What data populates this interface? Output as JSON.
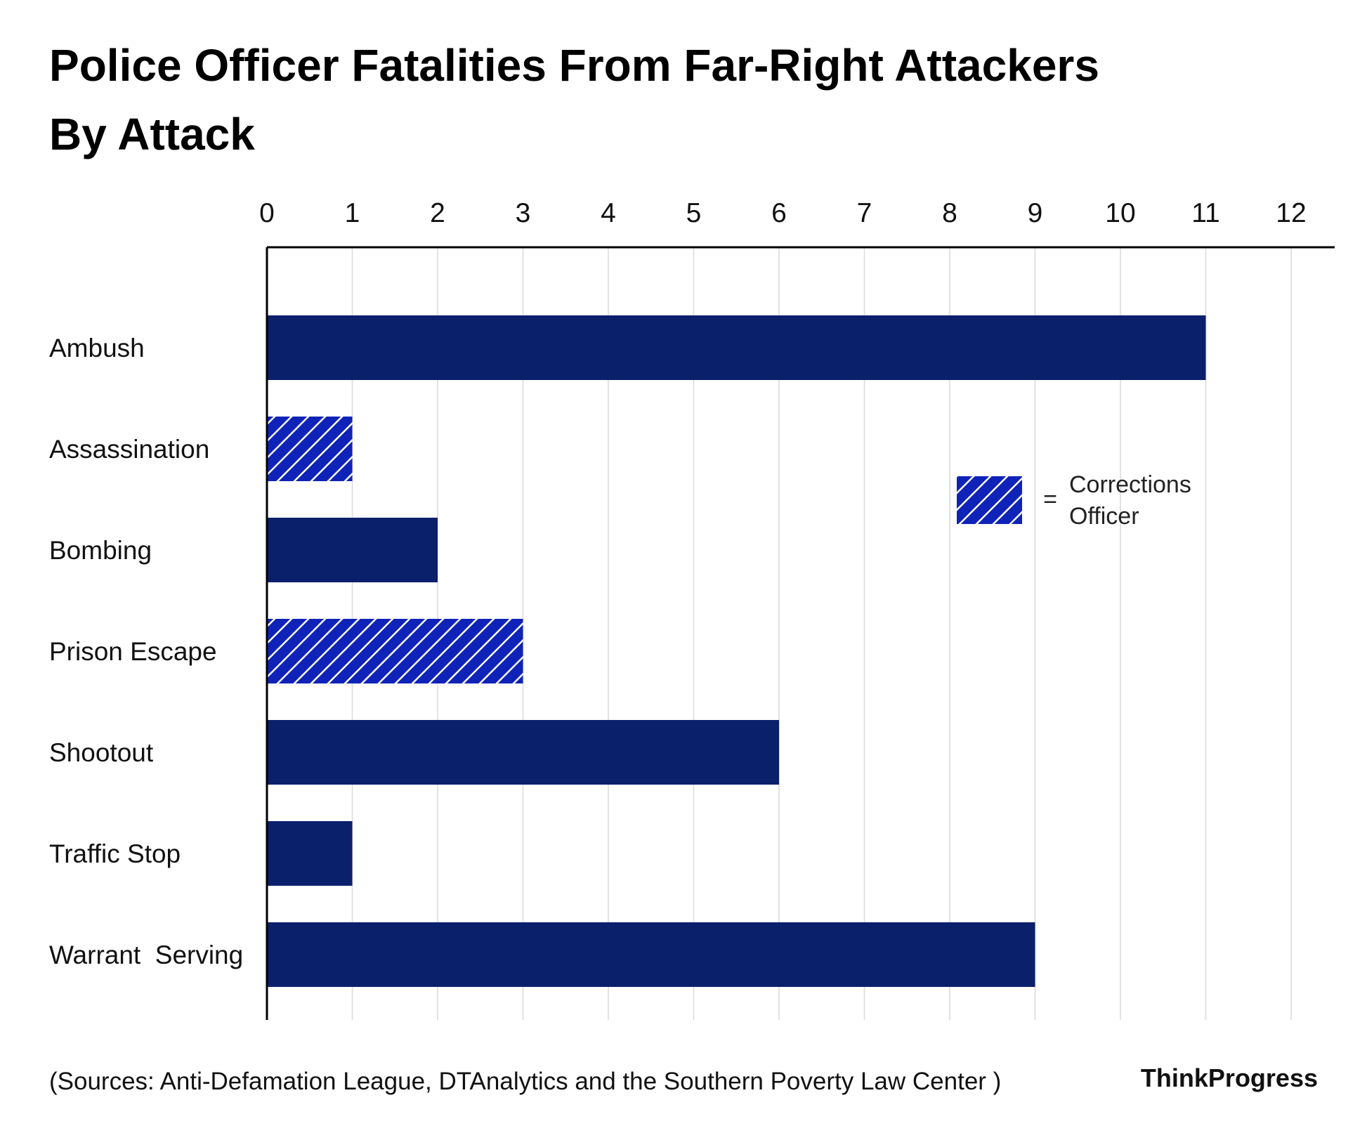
{
  "header": {
    "title_line1": "Police Officer Fatalities From Far-Right Attackers",
    "title_line2": "By Attack"
  },
  "legend": {
    "equals": "=",
    "label_line1": "Corrections",
    "label_line2": "Officer"
  },
  "footer": {
    "source": "(Sources: Anti-Defamation League, DTAnalytics and the Southern Poverty Law Center )",
    "brand": "ThinkProgress"
  },
  "colors": {
    "bar": "#0b206b",
    "hatched": "#0f23b8",
    "grid": "#d9d9d9",
    "axis": "#000000"
  },
  "chart_data": {
    "type": "bar",
    "orientation": "horizontal",
    "title": "Police Officer Fatalities From Far-Right Attackers By Attack",
    "categories": [
      "Ambush",
      "Assassination",
      "Bombing",
      "Prison Escape",
      "Shootout",
      "Traffic Stop",
      "Warrant  Serving"
    ],
    "values": [
      11,
      1,
      2,
      3,
      6,
      1,
      9
    ],
    "corrections_officer": [
      false,
      true,
      false,
      true,
      false,
      false,
      false
    ],
    "xlim": [
      0,
      12.5
    ],
    "xticks": [
      0,
      1,
      2,
      3,
      4,
      5,
      6,
      7,
      8,
      9,
      10,
      11,
      12
    ],
    "x_axis_position": "top",
    "grid": true,
    "legend_position": "right",
    "legend": [
      {
        "name": "Corrections Officer",
        "pattern": "hatched"
      }
    ]
  }
}
